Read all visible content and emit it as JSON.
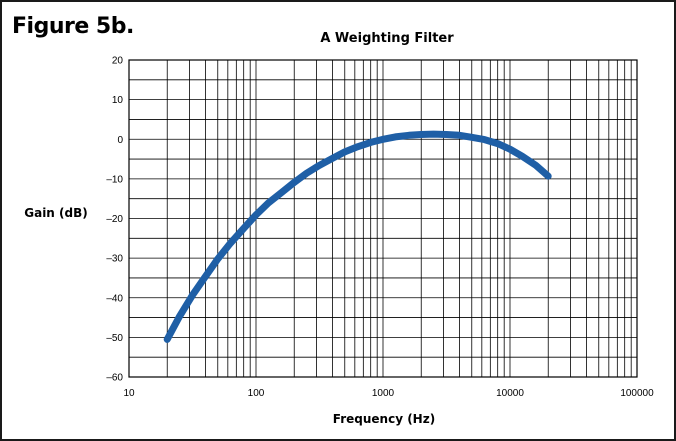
{
  "figure_label": "Figure 5b.",
  "chart_data": {
    "type": "line",
    "title": "A Weighting Filter",
    "xlabel": "Frequency (Hz)",
    "ylabel": "Gain (dB)",
    "x_scale": "log",
    "xlim": [
      10,
      100000
    ],
    "ylim": [
      -60,
      20
    ],
    "x_ticks": [
      10,
      100,
      1000,
      10000,
      100000
    ],
    "x_tick_labels": [
      "10",
      "100",
      "1000",
      "10000",
      "100000"
    ],
    "y_ticks": [
      20,
      10,
      0,
      -10,
      -20,
      -30,
      -40,
      -50,
      -60
    ],
    "y_tick_labels": [
      "20",
      "10",
      "0",
      "–10",
      "–20",
      "–30",
      "–40",
      "–50",
      "–60"
    ],
    "grid": true,
    "line_color": "#1f5fa6",
    "series": [
      {
        "x": [
          20,
          25,
          31.5,
          40,
          50,
          63,
          80,
          100,
          125,
          160,
          200,
          250,
          315,
          400,
          500,
          630,
          800,
          1000,
          1250,
          1600,
          2000,
          2500,
          3150,
          4000,
          5000,
          6300,
          8000,
          10000,
          12500,
          16000,
          20000
        ],
        "y": [
          -50.5,
          -44.7,
          -39.4,
          -34.6,
          -30.2,
          -26.2,
          -22.5,
          -19.1,
          -16.1,
          -13.4,
          -10.9,
          -8.6,
          -6.6,
          -4.8,
          -3.2,
          -1.9,
          -0.8,
          0.0,
          0.6,
          1.0,
          1.2,
          1.3,
          1.2,
          1.0,
          0.5,
          -0.1,
          -1.1,
          -2.5,
          -4.3,
          -6.6,
          -9.3
        ]
      }
    ]
  }
}
